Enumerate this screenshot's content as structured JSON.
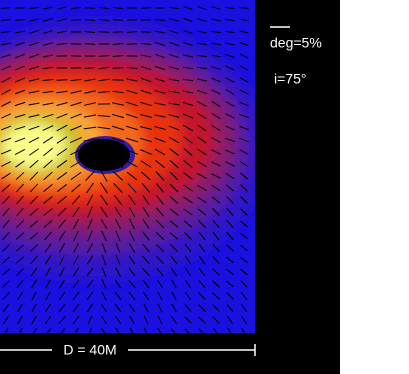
{
  "labels": {
    "scale": "deg=5%",
    "inclination": "i=75°",
    "distance": "D = 40M"
  }
}
